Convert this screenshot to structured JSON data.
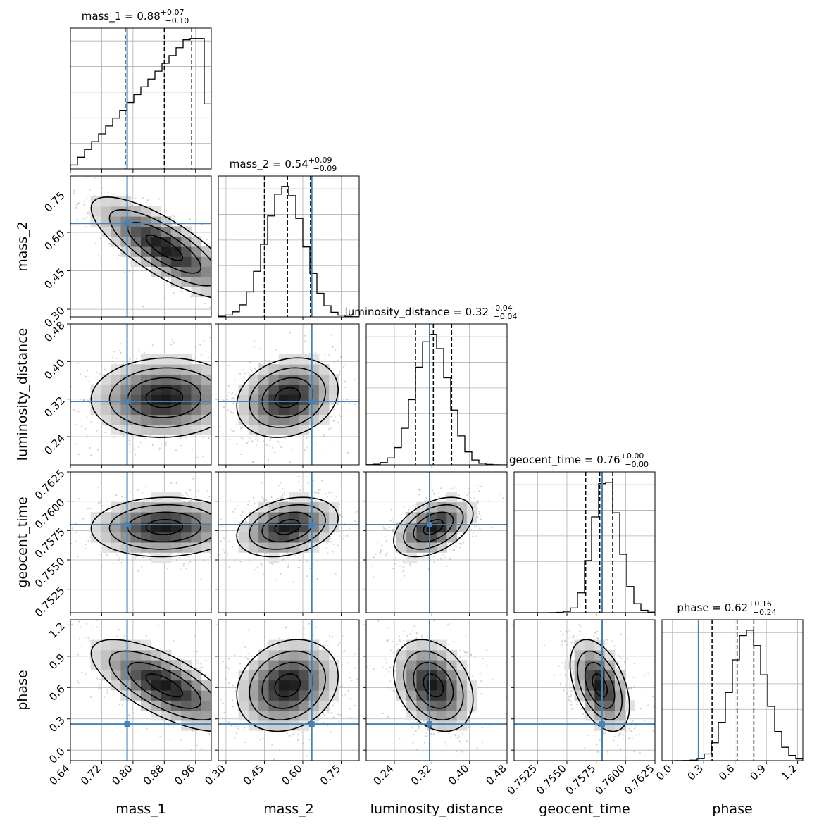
{
  "chart_data": {
    "type": "corner",
    "truth_color": "#4682b4",
    "parameters": [
      {
        "name": "mass_1",
        "xlabel": "mass_1",
        "range": [
          0.64,
          1.0
        ],
        "ticks": [
          "0.64",
          "0.72",
          "0.80",
          "0.88",
          "0.96"
        ],
        "title_base": "mass_1 = 0.88",
        "title_plus": "+0.07",
        "title_minus": "−0.10",
        "quantiles": [
          0.78,
          0.88,
          0.95
        ],
        "truth": 0.785,
        "hist_mode": 0.94,
        "hist_skew": 0.17,
        "hist_sigma": 0.09
      },
      {
        "name": "mass_2",
        "xlabel": "mass_2",
        "range": [
          0.27,
          0.82
        ],
        "ticks": [
          "0.30",
          "0.45",
          "0.60",
          "0.75"
        ],
        "title_base": "mass_2 = 0.54",
        "title_plus": "+0.09",
        "title_minus": "−0.09",
        "quantiles": [
          0.45,
          0.54,
          0.63
        ],
        "truth": 0.635,
        "hist_mode": 0.53,
        "hist_skew": 0.0,
        "hist_sigma": 0.075
      },
      {
        "name": "luminosity_distance",
        "xlabel": "luminosity_distance",
        "range": [
          0.18,
          0.48
        ],
        "ticks": [
          "0.24",
          "0.32",
          "0.40",
          "0.48"
        ],
        "title_base": "luminosity_distance = 0.32",
        "title_plus": "+0.04",
        "title_minus": "−0.04",
        "quantiles": [
          0.285,
          0.323,
          0.362
        ],
        "truth": 0.315,
        "hist_mode": 0.32,
        "hist_skew": 0.0,
        "hist_sigma": 0.036
      },
      {
        "name": "geocent_time",
        "xlabel": "geocent_time",
        "range": [
          0.7505,
          0.7625
        ],
        "ticks": [
          "0.7525",
          "0.7550",
          "0.7575",
          "0.7600",
          "0.7625"
        ],
        "title_base": "geocent_time = 0.76",
        "title_plus": "+0.00",
        "title_minus": "−0.00",
        "quantiles": [
          0.7566,
          0.7578,
          0.7589
        ],
        "truth": 0.758,
        "hist_mode": 0.7579,
        "hist_skew": -0.4,
        "hist_sigma": 0.0012
      },
      {
        "name": "phase",
        "xlabel": "phase",
        "range": [
          -0.1,
          1.25
        ],
        "ticks": [
          "0.0",
          "0.3",
          "0.6",
          "0.9",
          "1.2"
        ],
        "title_base": "phase = 0.62",
        "title_plus": "+0.16",
        "title_minus": "−0.24",
        "quantiles": [
          0.38,
          0.62,
          0.78
        ],
        "truth": 0.25,
        "hist_mode": 0.68,
        "hist_skew": -0.3,
        "hist_sigma": 0.17
      }
    ],
    "ylabels": [
      {
        "row": 1,
        "label": "mass_2",
        "ticks": [
          "0.30",
          "0.45",
          "0.60",
          "0.75"
        ]
      },
      {
        "row": 2,
        "label": "luminosity_distance",
        "ticks": [
          "0.24",
          "0.32",
          "0.40",
          "0.48"
        ]
      },
      {
        "row": 3,
        "label": "geocent_time",
        "ticks": [
          "0.7525",
          "0.7550",
          "0.7575",
          "0.7600",
          "0.7625"
        ]
      },
      {
        "row": 4,
        "label": "phase",
        "ticks": [
          "0.0",
          "0.3",
          "0.6",
          "0.9",
          "1.2"
        ]
      }
    ],
    "pair_correlations": [
      {
        "x": 0,
        "y": 1,
        "rho": -0.78
      },
      {
        "x": 0,
        "y": 2,
        "rho": 0.05
      },
      {
        "x": 1,
        "y": 2,
        "rho": 0.2
      },
      {
        "x": 0,
        "y": 3,
        "rho": 0.05
      },
      {
        "x": 1,
        "y": 3,
        "rho": 0.3
      },
      {
        "x": 2,
        "y": 3,
        "rho": 0.45
      },
      {
        "x": 0,
        "y": 4,
        "rho": -0.7
      },
      {
        "x": 1,
        "y": 4,
        "rho": 0.2
      },
      {
        "x": 2,
        "y": 4,
        "rho": -0.3
      },
      {
        "x": 3,
        "y": 4,
        "rho": -0.45
      }
    ],
    "contour_levels": [
      "0.5",
      "1.0",
      "1.5",
      "2.0"
    ],
    "grid": true
  }
}
